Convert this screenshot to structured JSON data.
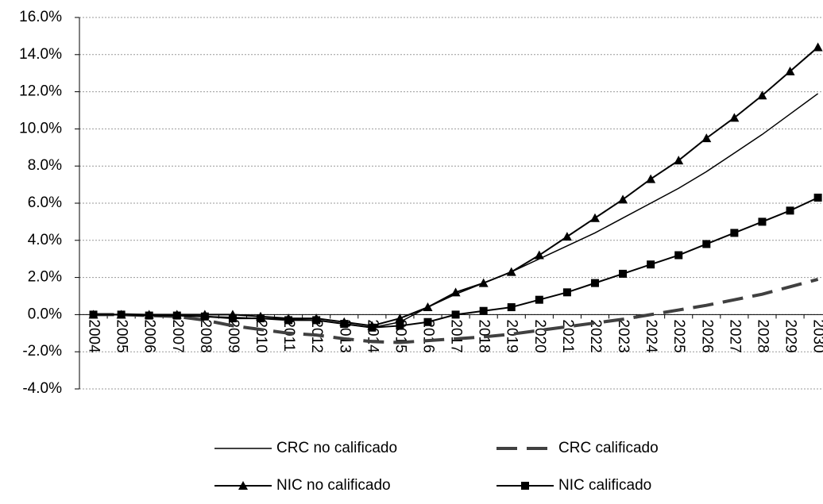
{
  "chart_data": {
    "type": "line",
    "categories": [
      "2004",
      "2005",
      "2006",
      "2007",
      "2008",
      "2009",
      "2010",
      "2011",
      "2012",
      "2013",
      "2014",
      "2015",
      "2016",
      "2017",
      "2018",
      "2019",
      "2020",
      "2021",
      "2022",
      "2023",
      "2024",
      "2025",
      "2026",
      "2027",
      "2028",
      "2029",
      "2030"
    ],
    "series": [
      {
        "name": "CRC no calificado",
        "color": "#000000",
        "width": 1.5,
        "dash": false,
        "marker": "none",
        "values": [
          0,
          0,
          -0.05,
          -0.05,
          -0.1,
          -0.15,
          -0.2,
          -0.25,
          -0.3,
          -0.5,
          -0.7,
          -0.4,
          0.4,
          1.1,
          1.7,
          2.3,
          3.0,
          3.7,
          4.4,
          5.2,
          6.0,
          6.8,
          7.7,
          8.7,
          9.7,
          10.8,
          11.9
        ]
      },
      {
        "name": "CRC calificado",
        "color": "#404040",
        "width": 4,
        "dash": true,
        "marker": "none",
        "values": [
          0,
          0,
          -0.05,
          -0.1,
          -0.3,
          -0.6,
          -0.8,
          -1.0,
          -1.1,
          -1.3,
          -1.45,
          -1.5,
          -1.4,
          -1.3,
          -1.2,
          -1.05,
          -0.85,
          -0.65,
          -0.45,
          -0.25,
          0.0,
          0.25,
          0.5,
          0.8,
          1.1,
          1.5,
          1.9
        ]
      },
      {
        "name": "NIC no calificado",
        "color": "#000000",
        "width": 2,
        "dash": false,
        "marker": "triangle",
        "values": [
          0,
          0,
          0,
          0,
          0,
          0,
          -0.1,
          -0.2,
          -0.2,
          -0.4,
          -0.6,
          -0.2,
          0.4,
          1.2,
          1.7,
          2.3,
          3.2,
          4.2,
          5.2,
          6.2,
          7.3,
          8.3,
          9.5,
          10.6,
          11.8,
          13.1,
          14.4
        ]
      },
      {
        "name": "NIC calificado",
        "color": "#000000",
        "width": 2,
        "dash": false,
        "marker": "square",
        "values": [
          0,
          0,
          -0.05,
          -0.05,
          -0.1,
          -0.2,
          -0.2,
          -0.3,
          -0.3,
          -0.5,
          -0.7,
          -0.6,
          -0.4,
          0.0,
          0.2,
          0.4,
          0.8,
          1.2,
          1.7,
          2.2,
          2.7,
          3.2,
          3.8,
          4.4,
          5.0,
          5.6,
          6.3
        ]
      }
    ],
    "ylim": [
      -4,
      16
    ],
    "yticks": [
      {
        "value": -4,
        "label": "-4.0%"
      },
      {
        "value": -2,
        "label": "-2.0%"
      },
      {
        "value": 0,
        "label": "0.0%"
      },
      {
        "value": 2,
        "label": "2.0%"
      },
      {
        "value": 4,
        "label": "4.0%"
      },
      {
        "value": 6,
        "label": "6.0%"
      },
      {
        "value": 8,
        "label": "8.0%"
      },
      {
        "value": 10,
        "label": "10.0%"
      },
      {
        "value": 12,
        "label": "12.0%"
      },
      {
        "value": 14,
        "label": "14.0%"
      },
      {
        "value": 16,
        "label": "16.0%"
      }
    ],
    "grid": true
  }
}
